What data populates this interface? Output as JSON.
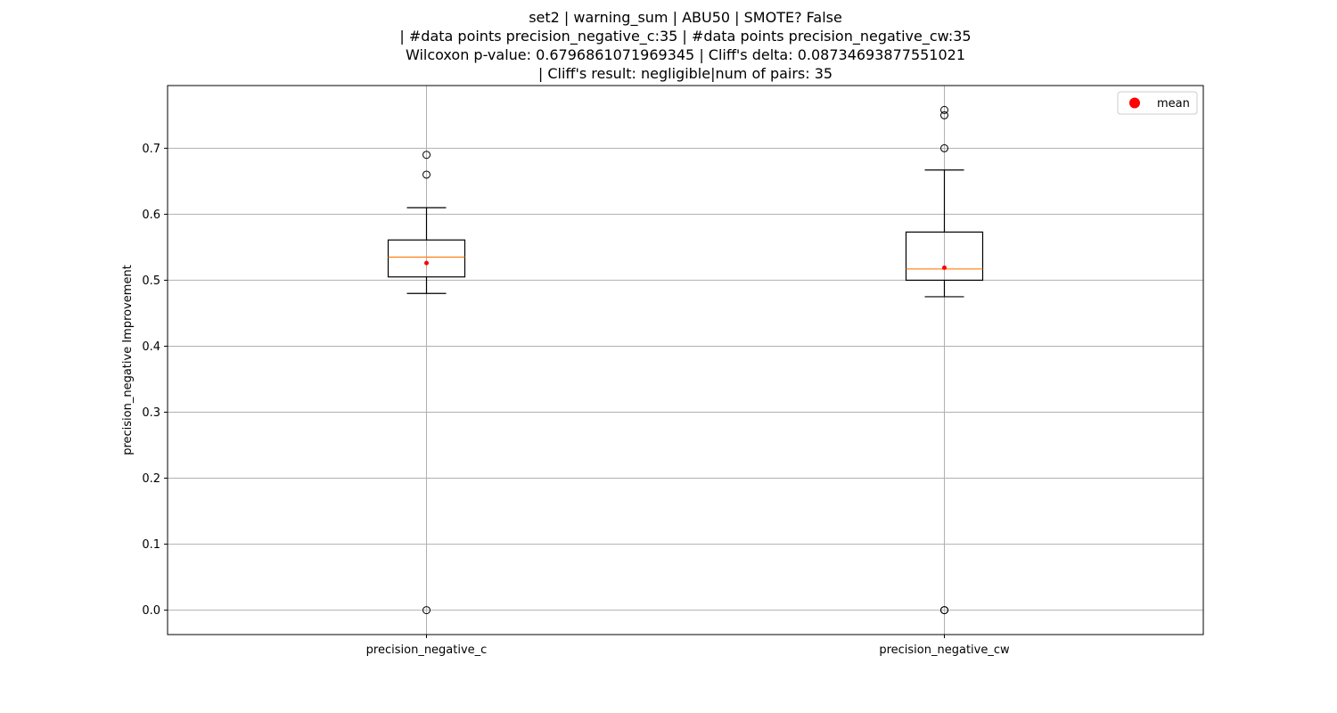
{
  "chart_data": {
    "type": "box",
    "title_lines": [
      "set2 | warning_sum | ABU50 | SMOTE? False",
      "| #data points precision_negative_c:35 | #data points precision_negative_cw:35",
      "Wilcoxon p-value: 0.6796861071969345 | Cliff's delta: 0.08734693877551021",
      "| Cliff's result: negligible|num of pairs: 35"
    ],
    "xlabel": "",
    "ylabel": "precision_negative Improvement",
    "ylim": [
      -0.037,
      0.795
    ],
    "yticks": [
      0.0,
      0.1,
      0.2,
      0.3,
      0.4,
      0.5,
      0.6,
      0.7
    ],
    "ytick_labels": [
      "0.0",
      "0.1",
      "0.2",
      "0.3",
      "0.4",
      "0.5",
      "0.6",
      "0.7"
    ],
    "grid": true,
    "legend": {
      "position": "top-right",
      "entries": [
        "mean"
      ]
    },
    "colors": {
      "box": "#000000",
      "median": "#ff7f0e",
      "mean": "#ff0000",
      "grid": "#b0b0b0"
    },
    "categories": [
      "precision_negative_c",
      "precision_negative_cw"
    ],
    "boxes": [
      {
        "name": "precision_negative_c",
        "whisker_low": 0.48,
        "q1": 0.505,
        "median": 0.535,
        "q3": 0.561,
        "whisker_high": 0.61,
        "mean": 0.526,
        "outliers": [
          0.0,
          0.66,
          0.69
        ]
      },
      {
        "name": "precision_negative_cw",
        "whisker_low": 0.475,
        "q1": 0.5,
        "median": 0.517,
        "q3": 0.573,
        "whisker_high": 0.667,
        "mean": 0.519,
        "outliers": [
          0.0,
          0.0,
          0.7,
          0.75,
          0.758
        ]
      }
    ]
  }
}
